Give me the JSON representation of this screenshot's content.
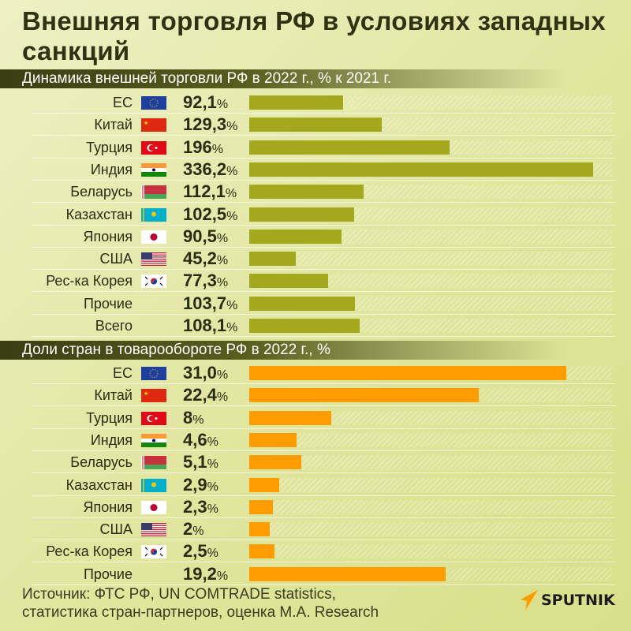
{
  "title": "Внешняя торговля РФ в условиях западных санкций",
  "colors": {
    "bar_dynamics": "#a4a81c",
    "bar_share": "#ff9d00",
    "header": "#474a17"
  },
  "chart_data": [
    {
      "type": "bar",
      "orientation": "horizontal",
      "title": "Динамика внешней торговли РФ в 2022 г., % к 2021 г.",
      "categories": [
        "ЕС",
        "Китай",
        "Турция",
        "Индия",
        "Беларусь",
        "Казахстан",
        "Япония",
        "США",
        "Рес-ка Корея",
        "Прочие",
        "Всего"
      ],
      "flags": [
        "eu",
        "cn",
        "tr",
        "in",
        "by",
        "kz",
        "jp",
        "us",
        "kr",
        null,
        null
      ],
      "values": [
        92.1,
        129.3,
        196,
        336.2,
        112.1,
        102.5,
        90.5,
        45.2,
        77.3,
        103.7,
        108.1
      ],
      "labels": [
        "92,1",
        "129,3",
        "196",
        "336,2",
        "112,1",
        "102,5",
        "90,5",
        "45,2",
        "77,3",
        "103,7",
        "108,1"
      ],
      "unit": "%"
    },
    {
      "type": "bar",
      "orientation": "horizontal",
      "title": "Доли стран в товарообороте РФ в 2022 г., %",
      "categories": [
        "ЕС",
        "Китай",
        "Турция",
        "Индия",
        "Беларусь",
        "Казахстан",
        "Япония",
        "США",
        "Рес-ка Корея",
        "Прочие"
      ],
      "flags": [
        "eu",
        "cn",
        "tr",
        "in",
        "by",
        "kz",
        "jp",
        "us",
        "kr",
        null
      ],
      "values": [
        31.0,
        22.4,
        8,
        4.6,
        5.1,
        2.9,
        2.3,
        2,
        2.5,
        19.2
      ],
      "labels": [
        "31,0",
        "22,4",
        "8",
        "4,6",
        "5,1",
        "2,9",
        "2,3",
        "2",
        "2,5",
        "19,2"
      ],
      "unit": "%"
    }
  ],
  "source_line1": "Источник: ФТС РФ, UN COMTRADE statistics,",
  "source_line2": "статистика стран-партнеров, оценка М.А. Research",
  "logo": "SPUTNIK"
}
